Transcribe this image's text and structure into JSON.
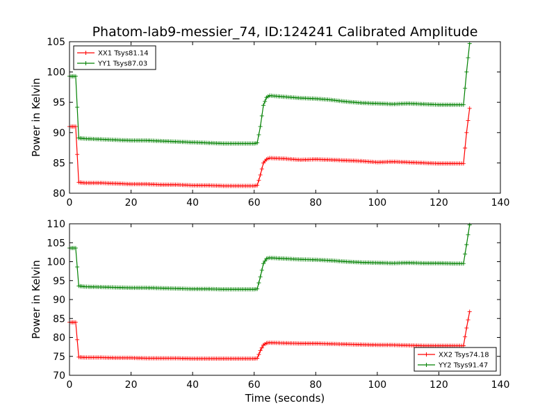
{
  "title": "Phatom-lab9-messier_74, ID:124241 Calibrated Amplitude",
  "xlabel": "Time (seconds)",
  "chart_data": [
    {
      "type": "line",
      "ylabel": "Power in Kelvin",
      "xlim": [
        0,
        140
      ],
      "ylim": [
        80,
        105
      ],
      "xticks": [
        0,
        20,
        40,
        60,
        80,
        100,
        120,
        140
      ],
      "yticks": [
        80,
        85,
        90,
        95,
        100,
        105
      ],
      "legend_position": "top-left",
      "marker": "+",
      "series": [
        {
          "name": "XX1 Tsys81.14",
          "color": "#ff0000",
          "x": [
            0,
            1,
            2,
            3,
            5,
            10,
            15,
            20,
            25,
            30,
            35,
            40,
            45,
            50,
            55,
            60,
            61,
            62,
            63,
            64,
            65,
            70,
            75,
            80,
            85,
            90,
            95,
            100,
            105,
            110,
            115,
            120,
            125,
            128,
            129,
            130
          ],
          "y": [
            91,
            91,
            91,
            81.8,
            81.7,
            81.7,
            81.6,
            81.5,
            81.5,
            81.4,
            81.4,
            81.3,
            81.3,
            81.2,
            81.2,
            81.2,
            81.3,
            83,
            85,
            85.6,
            85.8,
            85.7,
            85.5,
            85.6,
            85.5,
            85.4,
            85.3,
            85.1,
            85.2,
            85.1,
            85.0,
            84.9,
            84.9,
            84.9,
            90,
            94
          ]
        },
        {
          "name": "YY1 Tsys87.03",
          "color": "#008000",
          "x": [
            0,
            1,
            2,
            3,
            5,
            10,
            15,
            20,
            25,
            30,
            35,
            40,
            45,
            50,
            55,
            60,
            61,
            62,
            63,
            64,
            65,
            70,
            75,
            80,
            85,
            90,
            95,
            100,
            105,
            110,
            115,
            120,
            125,
            128,
            129,
            130
          ],
          "y": [
            99.3,
            99.3,
            99.3,
            89.1,
            89,
            88.9,
            88.8,
            88.7,
            88.7,
            88.6,
            88.5,
            88.4,
            88.3,
            88.2,
            88.2,
            88.2,
            88.3,
            91,
            94.5,
            95.8,
            96.1,
            95.9,
            95.7,
            95.6,
            95.4,
            95.1,
            94.9,
            94.8,
            94.7,
            94.8,
            94.7,
            94.6,
            94.6,
            94.6,
            100,
            104.7
          ]
        }
      ]
    },
    {
      "type": "line",
      "ylabel": "Power in Kelvin",
      "xlim": [
        0,
        140
      ],
      "ylim": [
        70,
        110
      ],
      "xticks": [
        0,
        20,
        40,
        60,
        80,
        100,
        120,
        140
      ],
      "yticks": [
        70,
        75,
        80,
        85,
        90,
        95,
        100,
        105,
        110
      ],
      "legend_position": "bottom-right",
      "marker": "+",
      "series": [
        {
          "name": "XX2 Tsys74.18",
          "color": "#ff0000",
          "x": [
            0,
            1,
            2,
            3,
            5,
            10,
            15,
            20,
            25,
            30,
            35,
            40,
            45,
            50,
            55,
            60,
            61,
            62,
            63,
            64,
            65,
            70,
            75,
            80,
            85,
            90,
            95,
            100,
            105,
            110,
            115,
            120,
            125,
            128,
            129,
            130
          ],
          "y": [
            84,
            84,
            84,
            74.8,
            74.7,
            74.7,
            74.6,
            74.6,
            74.5,
            74.5,
            74.5,
            74.4,
            74.4,
            74.4,
            74.4,
            74.4,
            74.5,
            76.5,
            78.0,
            78.5,
            78.6,
            78.5,
            78.4,
            78.4,
            78.3,
            78.2,
            78.1,
            78.0,
            78.0,
            77.9,
            77.8,
            77.8,
            77.8,
            77.8,
            82.5,
            86.8
          ]
        },
        {
          "name": "YY2 Tsys91.47",
          "color": "#008000",
          "x": [
            0,
            1,
            2,
            3,
            5,
            10,
            15,
            20,
            25,
            30,
            35,
            40,
            45,
            50,
            55,
            60,
            61,
            62,
            63,
            64,
            65,
            70,
            75,
            80,
            85,
            90,
            95,
            100,
            105,
            110,
            115,
            120,
            125,
            128,
            129,
            130
          ],
          "y": [
            103.6,
            103.6,
            103.6,
            93.6,
            93.4,
            93.3,
            93.2,
            93.1,
            93.1,
            93.0,
            92.9,
            92.8,
            92.8,
            92.7,
            92.7,
            92.7,
            92.8,
            96,
            99.5,
            100.8,
            101.0,
            100.8,
            100.6,
            100.5,
            100.3,
            100.0,
            99.8,
            99.7,
            99.6,
            99.7,
            99.6,
            99.6,
            99.5,
            99.5,
            104.5,
            109.7
          ]
        }
      ]
    }
  ]
}
